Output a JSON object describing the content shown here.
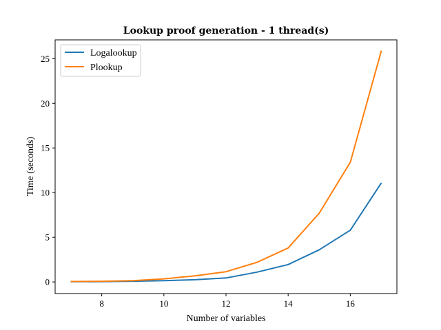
{
  "chart_data": {
    "type": "line",
    "title": "Lookup proof generation - 1 thread(s)",
    "xlabel": "Number of variables",
    "ylabel": "Time (seconds)",
    "xlim": [
      6.5,
      17.5
    ],
    "ylim": [
      -1.3,
      27.1
    ],
    "xticks": [
      8,
      10,
      12,
      14,
      16
    ],
    "yticks": [
      0,
      5,
      10,
      15,
      20,
      25
    ],
    "grid": false,
    "legend_position": "top-left",
    "x": [
      7,
      8,
      9,
      10,
      11,
      12,
      13,
      14,
      15,
      16,
      17
    ],
    "series": [
      {
        "name": "Logalookup",
        "color": "#1f77b4",
        "values": [
          0.02,
          0.04,
          0.08,
          0.15,
          0.25,
          0.45,
          1.1,
          1.95,
          3.6,
          5.8,
          11.1
        ]
      },
      {
        "name": "Plookup",
        "color": "#ff7f0e",
        "values": [
          0.05,
          0.08,
          0.15,
          0.35,
          0.68,
          1.15,
          2.2,
          3.8,
          7.7,
          13.4,
          25.9
        ]
      }
    ]
  }
}
